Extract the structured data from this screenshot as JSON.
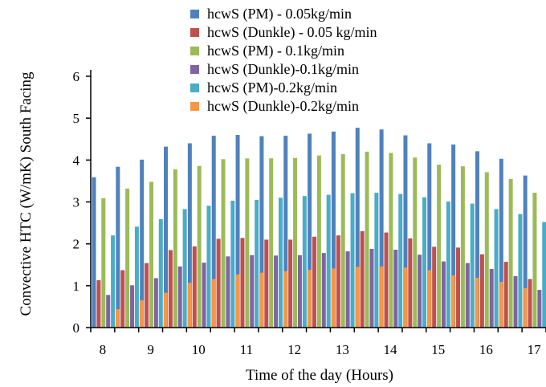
{
  "chart_data": {
    "type": "bar",
    "title": "",
    "xlabel": "Time of the day (Hours)",
    "ylabel": "Convective HTC (W/mK) South Facing",
    "ylim": [
      0,
      6
    ],
    "yticks": [
      "0",
      "1",
      "2",
      "3",
      "4",
      "5",
      "6"
    ],
    "xtick_labels": [
      "8",
      "9",
      "10",
      "11",
      "12",
      "13",
      "14",
      "15",
      "16",
      "17"
    ],
    "categories": [
      "8:00",
      "8:30",
      "9:00",
      "9:30",
      "10:00",
      "10:30",
      "11:00",
      "11:30",
      "12:00",
      "12:30",
      "13:00",
      "13:30",
      "14:00",
      "14:30",
      "15:00",
      "15:30",
      "16:00",
      "16:30",
      "17:00"
    ],
    "legend_position": "top",
    "grid": false,
    "series": [
      {
        "name": "hcwS (PM) - 0.05kg/min",
        "color": "#4f81bd",
        "values": [
          3.59,
          3.84,
          4.01,
          4.32,
          4.4,
          4.58,
          4.6,
          4.57,
          4.58,
          4.63,
          4.68,
          4.77,
          4.73,
          4.59,
          4.4,
          4.37,
          4.21,
          4.03,
          3.63
        ]
      },
      {
        "name": "hcwS (Dunkle) - 0.05 kg/min",
        "color": "#c0504d",
        "values": [
          1.13,
          1.37,
          1.54,
          1.85,
          1.94,
          2.12,
          2.14,
          2.1,
          2.1,
          2.17,
          2.2,
          2.3,
          2.27,
          2.13,
          1.93,
          1.91,
          1.75,
          1.57,
          1.16
        ]
      },
      {
        "name": "hcwS (PM) - 0.1kg/min",
        "color": "#9bbb59",
        "values": [
          3.09,
          3.32,
          3.48,
          3.78,
          3.86,
          4.02,
          4.04,
          4.04,
          4.05,
          4.11,
          4.14,
          4.2,
          4.17,
          4.06,
          3.89,
          3.85,
          3.71,
          3.55,
          3.22
        ]
      },
      {
        "name": "hcwS (Dunkle)-0.1kg/min",
        "color": "#8064a2",
        "values": [
          0.78,
          1.01,
          1.18,
          1.46,
          1.55,
          1.7,
          1.73,
          1.72,
          1.73,
          1.78,
          1.82,
          1.88,
          1.86,
          1.74,
          1.58,
          1.54,
          1.4,
          1.23,
          0.9
        ]
      },
      {
        "name": "hcwS (PM)-0.2kg/min",
        "color": "#4bacc6",
        "values": [
          2.2,
          2.41,
          2.59,
          2.83,
          2.91,
          3.03,
          3.05,
          3.1,
          3.14,
          3.17,
          3.21,
          3.22,
          3.19,
          3.11,
          3.01,
          2.96,
          2.83,
          2.71,
          2.52
        ]
      },
      {
        "name": "hcwS (Dunkle)-0.2kg/min",
        "color": "#f79646",
        "values": [
          0.44,
          0.65,
          0.83,
          1.07,
          1.16,
          1.27,
          1.31,
          1.35,
          1.38,
          1.41,
          1.45,
          1.46,
          1.43,
          1.37,
          1.25,
          1.19,
          1.09,
          0.94,
          0.76
        ]
      }
    ]
  }
}
